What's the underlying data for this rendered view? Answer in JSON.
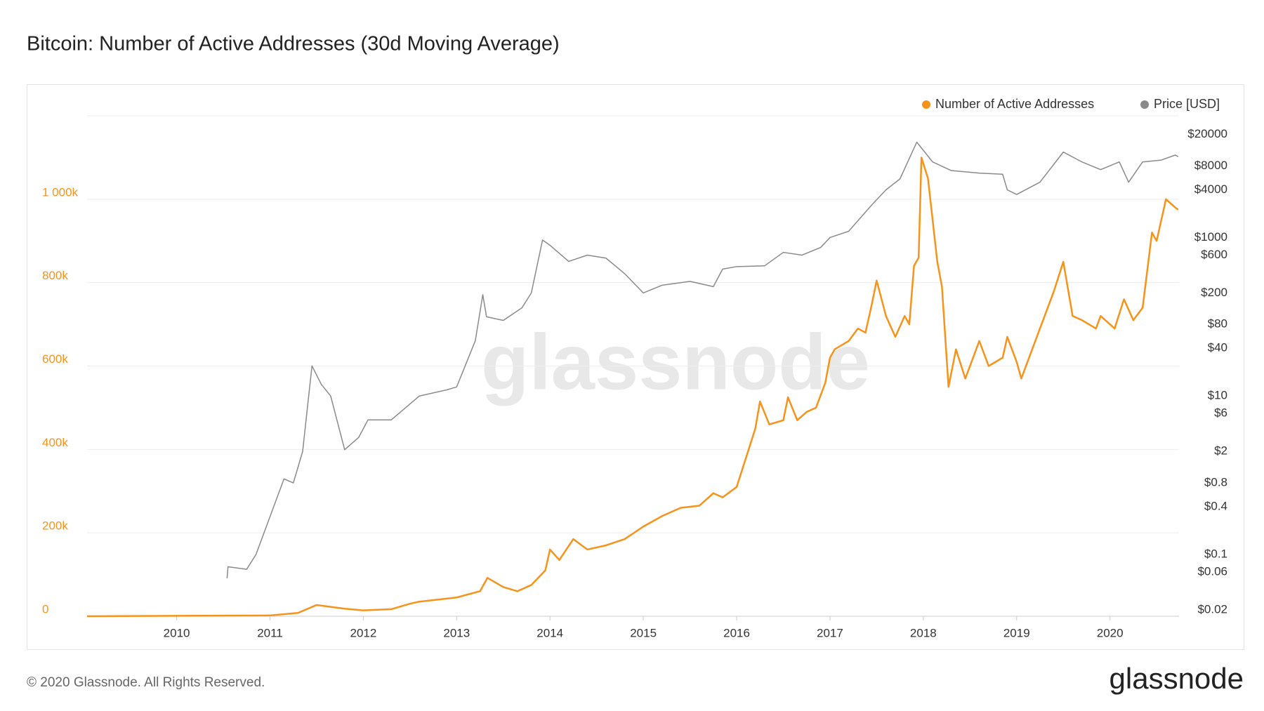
{
  "chart_data": {
    "type": "line",
    "title": "Bitcoin: Number of Active Addresses (30d Moving Average)",
    "watermark": "glassnode",
    "copyright": "© 2020 Glassnode. All Rights Reserved.",
    "brand": "glassnode",
    "xlim": [
      2009.04,
      2020.74
    ],
    "xticks": [
      2010,
      2011,
      2012,
      2013,
      2014,
      2015,
      2016,
      2017,
      2018,
      2019,
      2020
    ],
    "ylim": [
      0,
      1200000
    ],
    "yticks": [
      0,
      {
        "value": 200000,
        "label": "200k"
      },
      {
        "value": 400000,
        "label": "400k"
      },
      {
        "value": 600000,
        "label": "600k"
      },
      {
        "value": 800000,
        "label": "800k"
      },
      {
        "value": 1000000,
        "label": "1 000k"
      }
    ],
    "y2lim": [
      0.0166,
      34400
    ],
    "y2scale": "log",
    "y2ticks": [
      {
        "value": 20000,
        "label": "$20000"
      },
      {
        "value": 8000,
        "label": "$8000"
      },
      {
        "value": 4000,
        "label": "$4000"
      },
      {
        "value": 1000,
        "label": "$1000"
      },
      {
        "value": 600,
        "label": "$600"
      },
      {
        "value": 200,
        "label": "$200"
      },
      {
        "value": 80,
        "label": "$80"
      },
      {
        "value": 40,
        "label": "$40"
      },
      {
        "value": 10,
        "label": "$10"
      },
      {
        "value": 6,
        "label": "$6"
      },
      {
        "value": 2,
        "label": "$2"
      },
      {
        "value": 0.8,
        "label": "$0.8"
      },
      {
        "value": 0.4,
        "label": "$0.4"
      },
      {
        "value": 0.1,
        "label": "$0.1"
      },
      {
        "value": 0.06,
        "label": "$0.06"
      },
      {
        "value": 0.02,
        "label": "$0.02"
      }
    ],
    "grid": true,
    "legend": "top-right",
    "series": [
      {
        "name": "Number of Active Addresses",
        "color": "#f7931a",
        "axis": "y",
        "x": [
          2009.04,
          2010.0,
          2011.0,
          2011.3,
          2011.5,
          2011.8,
          2012.0,
          2012.3,
          2012.5,
          2012.6,
          2012.8,
          2013.0,
          2013.25,
          2013.33,
          2013.5,
          2013.65,
          2013.8,
          2013.95,
          2014.0,
          2014.1,
          2014.25,
          2014.4,
          2014.6,
          2014.8,
          2015.0,
          2015.2,
          2015.4,
          2015.6,
          2015.75,
          2015.85,
          2016.0,
          2016.1,
          2016.2,
          2016.25,
          2016.35,
          2016.5,
          2016.55,
          2016.65,
          2016.75,
          2016.85,
          2016.95,
          2017.0,
          2017.05,
          2017.2,
          2017.3,
          2017.38,
          2017.45,
          2017.5,
          2017.6,
          2017.7,
          2017.8,
          2017.85,
          2017.9,
          2017.95,
          2017.98,
          2018.05,
          2018.15,
          2018.2,
          2018.27,
          2018.35,
          2018.45,
          2018.6,
          2018.7,
          2018.85,
          2018.9,
          2019.0,
          2019.05,
          2019.2,
          2019.3,
          2019.4,
          2019.5,
          2019.6,
          2019.7,
          2019.85,
          2019.9,
          2020.05,
          2020.15,
          2020.25,
          2020.35,
          2020.45,
          2020.5,
          2020.6,
          2020.7,
          2020.73
        ],
        "values": [
          0,
          1000,
          2000,
          8000,
          27000,
          18000,
          14000,
          17000,
          30000,
          35000,
          40000,
          45000,
          60000,
          92000,
          70000,
          60000,
          75000,
          110000,
          160000,
          135000,
          185000,
          160000,
          170000,
          185000,
          215000,
          240000,
          260000,
          265000,
          295000,
          285000,
          310000,
          380000,
          450000,
          515000,
          460000,
          470000,
          525000,
          470000,
          490000,
          500000,
          560000,
          620000,
          640000,
          660000,
          690000,
          680000,
          750000,
          805000,
          720000,
          670000,
          720000,
          700000,
          840000,
          860000,
          1100000,
          1050000,
          850000,
          790000,
          550000,
          640000,
          570000,
          660000,
          600000,
          620000,
          670000,
          610000,
          570000,
          660000,
          720000,
          780000,
          850000,
          720000,
          710000,
          690000,
          720000,
          690000,
          760000,
          710000,
          740000,
          920000,
          900000,
          1000000,
          980000,
          975000
        ]
      },
      {
        "name": "Price [USD]",
        "color": "#8a8a8a",
        "axis": "y2",
        "x": [
          2010.54,
          2010.55,
          2010.75,
          2010.85,
          2011.0,
          2011.15,
          2011.25,
          2011.35,
          2011.4,
          2011.45,
          2011.55,
          2011.65,
          2011.8,
          2011.95,
          2012.05,
          2012.3,
          2012.6,
          2012.9,
          2013.0,
          2013.2,
          2013.28,
          2013.32,
          2013.5,
          2013.7,
          2013.8,
          2013.92,
          2014.0,
          2014.2,
          2014.4,
          2014.6,
          2014.8,
          2015.0,
          2015.2,
          2015.5,
          2015.75,
          2015.85,
          2016.0,
          2016.3,
          2016.5,
          2016.7,
          2016.9,
          2017.0,
          2017.2,
          2017.45,
          2017.6,
          2017.75,
          2017.93,
          2018.1,
          2018.3,
          2018.6,
          2018.85,
          2018.9,
          2019.0,
          2019.25,
          2019.5,
          2019.7,
          2019.9,
          2020.1,
          2020.2,
          2020.35,
          2020.55,
          2020.7,
          2020.73
        ],
        "values": [
          0.05,
          0.07,
          0.065,
          0.1,
          0.3,
          0.9,
          0.8,
          2,
          7,
          24,
          14,
          10,
          2.1,
          3,
          5,
          5,
          10,
          12,
          13,
          50,
          190,
          100,
          90,
          130,
          200,
          930,
          800,
          500,
          600,
          550,
          350,
          200,
          250,
          280,
          240,
          400,
          430,
          440,
          650,
          600,
          750,
          1000,
          1200,
          2600,
          4000,
          5500,
          16000,
          9000,
          7000,
          6500,
          6300,
          4000,
          3500,
          5000,
          12000,
          9000,
          7200,
          9000,
          5000,
          9000,
          9500,
          11000,
          10500
        ]
      }
    ]
  }
}
